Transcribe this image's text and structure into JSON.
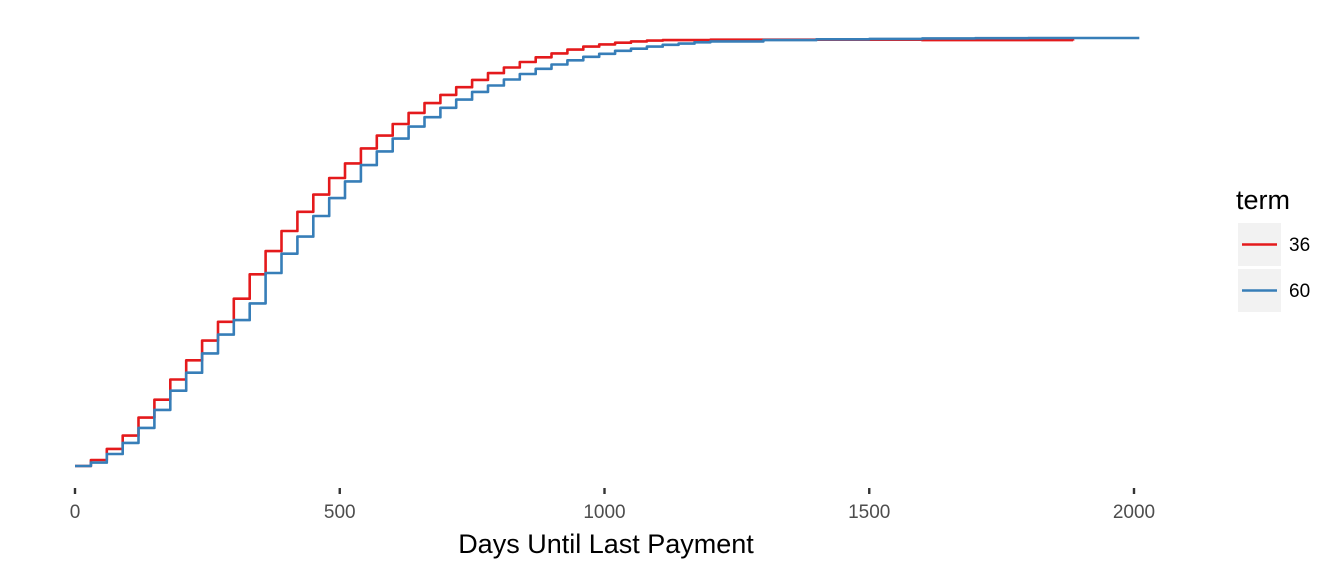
{
  "chart_data": {
    "type": "line",
    "title": "",
    "xlabel": "Days Until Last Payment",
    "ylabel": "",
    "xlim": [
      0,
      2200
    ],
    "ylim": [
      0,
      1
    ],
    "x_ticks": [
      0,
      500,
      1000,
      1500,
      2000
    ],
    "x_tick_labels": [
      "0",
      "500",
      "1000",
      "1500",
      "2000"
    ],
    "y_ticks_visible": false,
    "grid": false,
    "legend": {
      "title": "term",
      "position": "right"
    },
    "series": [
      {
        "name": "36",
        "color": "#E41A1C",
        "x": [
          0,
          30,
          60,
          90,
          120,
          150,
          180,
          210,
          240,
          270,
          300,
          330,
          360,
          390,
          420,
          450,
          480,
          510,
          540,
          570,
          600,
          630,
          660,
          690,
          720,
          750,
          780,
          810,
          840,
          870,
          900,
          930,
          960,
          990,
          1020,
          1050,
          1080,
          1110,
          1200,
          1400,
          1600,
          1885
        ],
        "y": [
          0.0,
          0.014,
          0.04,
          0.071,
          0.113,
          0.155,
          0.202,
          0.247,
          0.293,
          0.337,
          0.391,
          0.448,
          0.502,
          0.549,
          0.594,
          0.634,
          0.673,
          0.707,
          0.742,
          0.772,
          0.799,
          0.825,
          0.848,
          0.867,
          0.885,
          0.902,
          0.918,
          0.931,
          0.944,
          0.955,
          0.964,
          0.973,
          0.98,
          0.985,
          0.989,
          0.992,
          0.994,
          0.995,
          0.996,
          0.996,
          0.995,
          0.994
        ]
      },
      {
        "name": "60",
        "color": "#377EB8",
        "x": [
          0,
          30,
          60,
          90,
          120,
          150,
          180,
          210,
          240,
          270,
          300,
          330,
          360,
          390,
          420,
          450,
          480,
          510,
          540,
          570,
          600,
          630,
          660,
          690,
          720,
          750,
          780,
          810,
          840,
          870,
          900,
          930,
          960,
          990,
          1020,
          1050,
          1080,
          1110,
          1140,
          1170,
          1200,
          1300,
          1400,
          1500,
          1600,
          1700,
          1800,
          1900,
          2010
        ],
        "y": [
          0.0,
          0.008,
          0.028,
          0.054,
          0.089,
          0.131,
          0.176,
          0.218,
          0.263,
          0.307,
          0.341,
          0.38,
          0.451,
          0.496,
          0.536,
          0.584,
          0.626,
          0.665,
          0.703,
          0.735,
          0.765,
          0.793,
          0.815,
          0.837,
          0.856,
          0.874,
          0.889,
          0.903,
          0.916,
          0.928,
          0.938,
          0.948,
          0.956,
          0.963,
          0.97,
          0.975,
          0.98,
          0.984,
          0.987,
          0.99,
          0.992,
          0.995,
          0.997,
          0.998,
          0.999,
          0.9995,
          1.0,
          1.0,
          1.0
        ]
      }
    ]
  }
}
